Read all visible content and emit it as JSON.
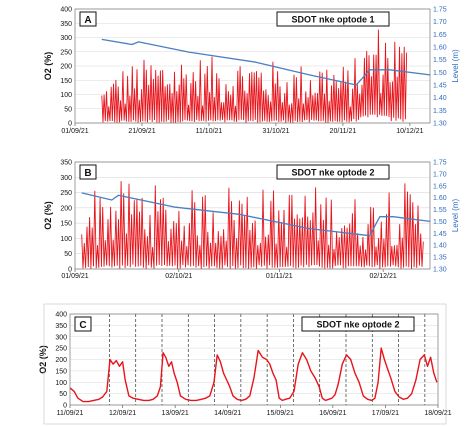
{
  "chart_data": [
    {
      "panel": "A",
      "type": "line",
      "title": "SDOT nke optode 1",
      "ylabel": "O2 (%)",
      "y2label": "Level (m)",
      "ylim": [
        0,
        400
      ],
      "y2lim": [
        1.3,
        1.75
      ],
      "yticks": [
        0,
        50,
        100,
        150,
        200,
        250,
        300,
        350,
        400
      ],
      "y2ticks": [
        "1.30",
        "1.35",
        "1.40",
        "1.45",
        "1.50",
        "1.55",
        "1.60",
        "1.65",
        "1.70",
        "1.75"
      ],
      "xlim": [
        "2021-09-01",
        "2021-12-16"
      ],
      "xticks": [
        "01/09/21",
        "21/09/21",
        "11/10/21",
        "31/10/21",
        "20/11/21",
        "10/12/21"
      ],
      "series": [
        {
          "axis": "left",
          "color": "#e8141b",
          "x": [
            "2021-09-09",
            "2021-09-15",
            "2021-09-25",
            "2021-10-05",
            "2021-10-15",
            "2021-10-25",
            "2021-11-04",
            "2021-11-14",
            "2021-11-22",
            "2021-11-26",
            "2021-11-30",
            "2021-12-04",
            "2021-12-09"
          ],
          "y_min": [
            0,
            0,
            0,
            0,
            0,
            0,
            0,
            0,
            0,
            10,
            20,
            5,
            0
          ],
          "y_max": [
            130,
            200,
            240,
            240,
            230,
            240,
            200,
            230,
            200,
            280,
            350,
            350,
            300
          ]
        },
        {
          "axis": "right",
          "color": "#4a7fc1",
          "x": [
            "2021-09-09",
            "2021-09-18",
            "2021-09-20",
            "2021-10-05",
            "2021-10-25",
            "2021-11-10",
            "2021-11-24",
            "2021-11-28",
            "2021-12-04",
            "2021-12-16"
          ],
          "y": [
            1.63,
            1.61,
            1.62,
            1.58,
            1.54,
            1.49,
            1.45,
            1.51,
            1.51,
            1.49
          ]
        }
      ]
    },
    {
      "panel": "B",
      "type": "line",
      "title": "SDOT nke optode 2",
      "ylabel": "O2 (%)",
      "y2label": "Level (m)",
      "ylim": [
        0,
        350
      ],
      "y2lim": [
        1.3,
        1.75
      ],
      "yticks": [
        0,
        50,
        100,
        150,
        200,
        250,
        300,
        350
      ],
      "y2ticks": [
        "1.30",
        "1.35",
        "1.40",
        "1.45",
        "1.50",
        "1.55",
        "1.60",
        "1.65",
        "1.70",
        "1.75"
      ],
      "xlim": [
        "2021-09-01",
        "2021-12-16"
      ],
      "xticks": [
        "01/09/21",
        "02/10/21",
        "01/11/21",
        "02/12/21"
      ],
      "series": [
        {
          "axis": "left",
          "color": "#e8141b",
          "x": [
            "2021-09-03",
            "2021-09-10",
            "2021-09-20",
            "2021-10-01",
            "2021-10-10",
            "2021-10-20",
            "2021-11-01",
            "2021-11-10",
            "2021-11-20",
            "2021-11-28",
            "2021-12-02",
            "2021-12-08",
            "2021-12-14"
          ],
          "y_min": [
            0,
            0,
            0,
            0,
            0,
            0,
            0,
            0,
            0,
            0,
            0,
            0,
            0
          ],
          "y_max": [
            270,
            280,
            300,
            250,
            270,
            290,
            260,
            280,
            250,
            230,
            300,
            290,
            230
          ]
        },
        {
          "axis": "right",
          "color": "#4a7fc1",
          "x": [
            "2021-09-03",
            "2021-09-12",
            "2021-09-14",
            "2021-10-01",
            "2021-10-20",
            "2021-11-10",
            "2021-11-28",
            "2021-12-01",
            "2021-12-05",
            "2021-12-16"
          ],
          "y": [
            1.62,
            1.59,
            1.61,
            1.56,
            1.53,
            1.47,
            1.44,
            1.52,
            1.52,
            1.5
          ]
        }
      ]
    },
    {
      "panel": "C",
      "type": "line",
      "title": "SDOT nke optode 2",
      "ylabel": "O2 (%)",
      "ylim": [
        0,
        400
      ],
      "yticks": [
        0,
        50,
        100,
        150,
        200,
        250,
        300,
        350,
        400
      ],
      "xlim": [
        0,
        7
      ],
      "xticks": [
        "11/09/21",
        "12/09/21",
        "13/09/21",
        "14/09/21",
        "15/09/21",
        "16/09/21",
        "17/09/21",
        "18/09/21"
      ],
      "dashed_lines": [
        0.75,
        1.25,
        1.75,
        2.25,
        2.75,
        3.25,
        3.75,
        4.25,
        4.75,
        5.25,
        5.75,
        6.25,
        6.75
      ],
      "series": [
        {
          "axis": "left",
          "color": "#e8141b",
          "x": [
            0.0,
            0.08,
            0.15,
            0.25,
            0.35,
            0.45,
            0.55,
            0.62,
            0.7,
            0.76,
            0.82,
            0.88,
            0.94,
            1.0,
            1.05,
            1.12,
            1.2,
            1.3,
            1.4,
            1.5,
            1.58,
            1.66,
            1.72,
            1.77,
            1.82,
            1.88,
            1.93,
            1.98,
            2.04,
            2.1,
            2.2,
            2.3,
            2.4,
            2.5,
            2.58,
            2.66,
            2.74,
            2.8,
            2.86,
            2.92,
            2.98,
            3.04,
            3.1,
            3.18,
            3.26,
            3.34,
            3.42,
            3.5,
            3.58,
            3.66,
            3.74,
            3.8,
            3.86,
            3.92,
            3.98,
            4.04,
            4.1,
            4.18,
            4.26,
            4.34,
            4.42,
            4.5,
            4.58,
            4.66,
            4.74,
            4.8,
            4.86,
            4.92,
            4.98,
            5.04,
            5.1,
            5.18,
            5.26,
            5.34,
            5.42,
            5.5,
            5.58,
            5.66,
            5.74,
            5.8,
            5.86,
            5.92,
            5.98,
            6.04,
            6.1,
            6.18,
            6.26,
            6.34,
            6.42,
            6.5,
            6.58,
            6.66,
            6.74,
            6.8,
            6.86,
            6.92,
            6.98
          ],
          "y": [
            75,
            60,
            30,
            15,
            15,
            20,
            25,
            35,
            60,
            200,
            180,
            195,
            170,
            190,
            110,
            40,
            30,
            25,
            20,
            20,
            25,
            40,
            80,
            230,
            210,
            170,
            190,
            140,
            100,
            40,
            25,
            20,
            20,
            25,
            30,
            40,
            100,
            220,
            190,
            140,
            110,
            80,
            40,
            25,
            20,
            25,
            40,
            120,
            240,
            210,
            200,
            180,
            140,
            110,
            30,
            20,
            25,
            30,
            60,
            180,
            230,
            200,
            150,
            120,
            80,
            30,
            20,
            25,
            30,
            45,
            90,
            180,
            220,
            200,
            140,
            100,
            40,
            25,
            20,
            30,
            100,
            250,
            200,
            160,
            120,
            60,
            35,
            25,
            30,
            50,
            110,
            200,
            220,
            170,
            210,
            140,
            100
          ]
        }
      ]
    }
  ]
}
